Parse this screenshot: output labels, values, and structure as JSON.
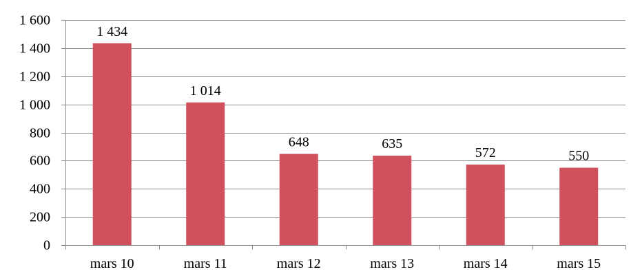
{
  "chart_data": {
    "type": "bar",
    "categories": [
      "mars 10",
      "mars 11",
      "mars 12",
      "mars 13",
      "mars 14",
      "mars 15"
    ],
    "values": [
      1434,
      1014,
      648,
      635,
      572,
      550
    ],
    "data_labels": [
      "1 434",
      "1 014",
      "648",
      "635",
      "572",
      "550"
    ],
    "y_ticks": [
      0,
      200,
      400,
      600,
      800,
      1000,
      1200,
      1400,
      1600
    ],
    "y_tick_labels": [
      "0",
      "200",
      "400",
      "600",
      "800",
      "1 000",
      "1 200",
      "1 400",
      "1 600"
    ],
    "ylim": [
      0,
      1600
    ],
    "title": "",
    "xlabel": "",
    "ylabel": "",
    "grid": true,
    "legend": "none",
    "bar_color": "#d0505e",
    "grid_color": "#8c8c8c"
  }
}
